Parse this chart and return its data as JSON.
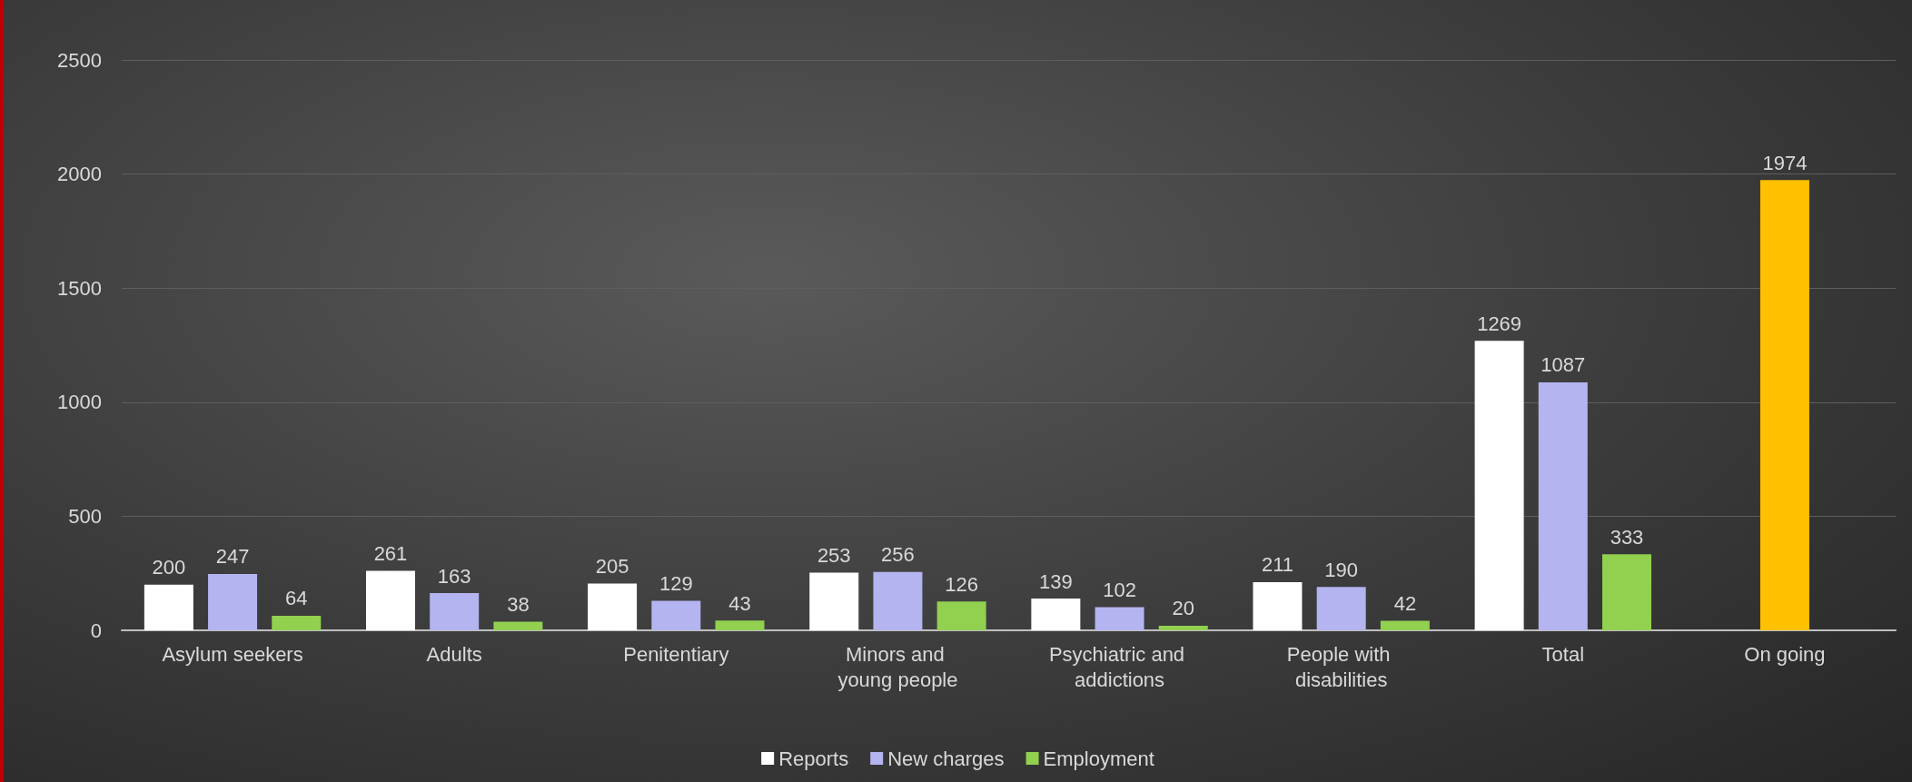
{
  "chart_data": {
    "type": "bar",
    "categories": [
      "Asylum seekers",
      "Adults",
      "Penitentiary",
      "Minors and young people",
      "Psychiatric and addictions",
      "People with disabilities",
      "Total",
      "On going"
    ],
    "series": [
      {
        "name": "Reports",
        "color": "#ffffff",
        "values": [
          200,
          261,
          205,
          253,
          139,
          211,
          1269,
          null
        ]
      },
      {
        "name": "New charges",
        "color": "#b4b4f0",
        "colors": [
          "#b4b4f0",
          "#b4b4f0",
          "#b4b4f0",
          "#b4b4f0",
          "#b4b4f0",
          "#b4b4f0",
          "#b4b4f0",
          "#ffc000"
        ],
        "values": [
          247,
          163,
          129,
          256,
          102,
          190,
          1087,
          1974
        ]
      },
      {
        "name": "Employment",
        "color": "#92d050",
        "values": [
          64,
          38,
          43,
          126,
          20,
          42,
          333,
          null
        ]
      }
    ],
    "ylim": [
      0,
      2500
    ],
    "yticks": [
      0,
      500,
      1000,
      1500,
      2000,
      2500
    ],
    "grid": "y",
    "legend": "bottom",
    "data_labels": true
  }
}
